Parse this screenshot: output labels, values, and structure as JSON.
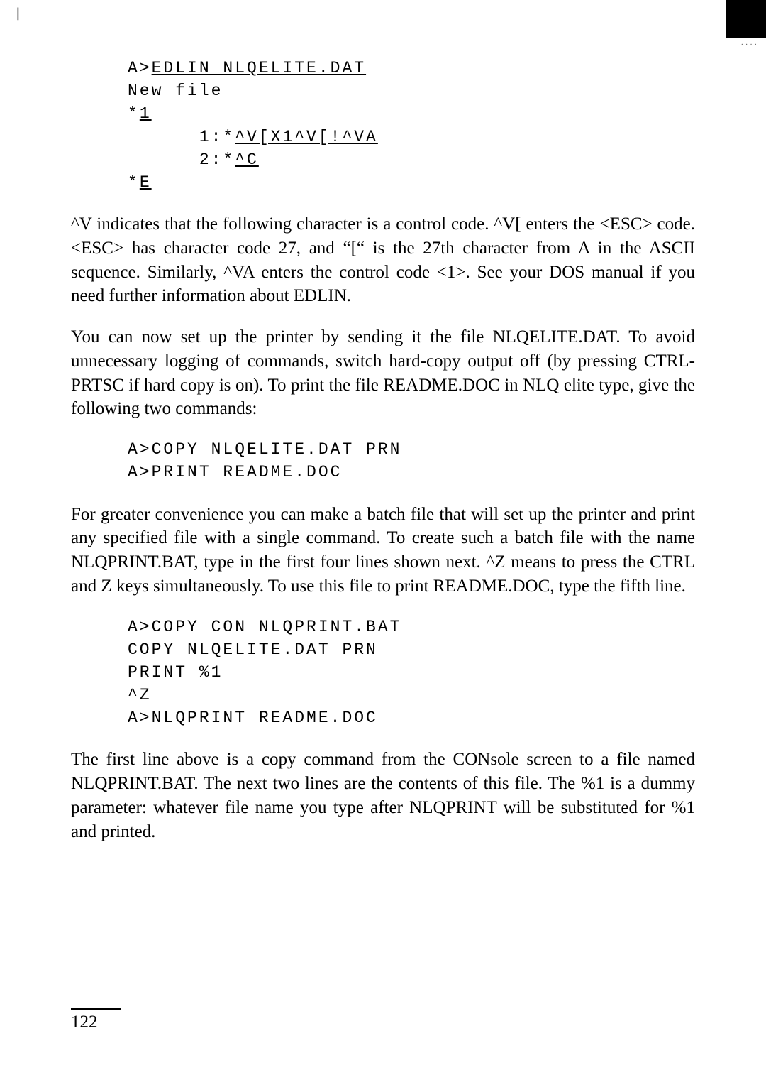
{
  "crop_mark": "|",
  "code1": {
    "line1_plain": "A>",
    "line1_ul": "EDLIN NLQELITE.DAT",
    "line2": "New file",
    "line3_star": "*",
    "line3_ul": "1",
    "line4_prefix": "      1:*",
    "line4_ul": "^V[X1^V[!^VA",
    "line5_prefix": "      2:*",
    "line5_ul": "^C",
    "line6_star": "*",
    "line6_ul": "E"
  },
  "para1": "^V indicates that the following character is a control code. ^V[ enters the <ESC> code. <ESC> has character code 27, and “[“ is the 27th character from A in the ASCII sequence. Similarly, ^VA enters the control code <1>. See your DOS manual if you need further information about EDLIN.",
  "para2": "You can now set up the printer by sending it the file NLQELITE.DAT. To avoid unnecessary logging of commands, switch hard-copy output off (by pressing CTRL-PRTSC if hard copy is on). To print the file README.DOC in NLQ elite type, give the following two commands:",
  "code2": {
    "line1": "A>COPY NLQELITE.DAT PRN",
    "line2": "A>PRINT README.DOC"
  },
  "para3": "For greater convenience you can make a batch file that will set up the printer and print any specified file with a single command. To create such a batch file with the name NLQPRINT.BAT, type in the first four lines shown next. ^Z means to press the CTRL and Z keys simultaneously. To use this file to print README.DOC, type the fifth line.",
  "code3": {
    "line1": "A>COPY CON NLQPRINT.BAT",
    "line2": "COPY NLQELITE.DAT PRN",
    "line3": "PRINT %1",
    "line4": "^Z",
    "line5": "A>NLQPRINT README.DOC"
  },
  "para4": "The first line above is a copy command from the CONsole screen to a file named NLQPRINT.BAT. The next two lines are the contents of this file. The %1 is a dummy parameter: whatever file name you type after NLQPRINT will be substituted for %1 and printed.",
  "page_number": "122"
}
